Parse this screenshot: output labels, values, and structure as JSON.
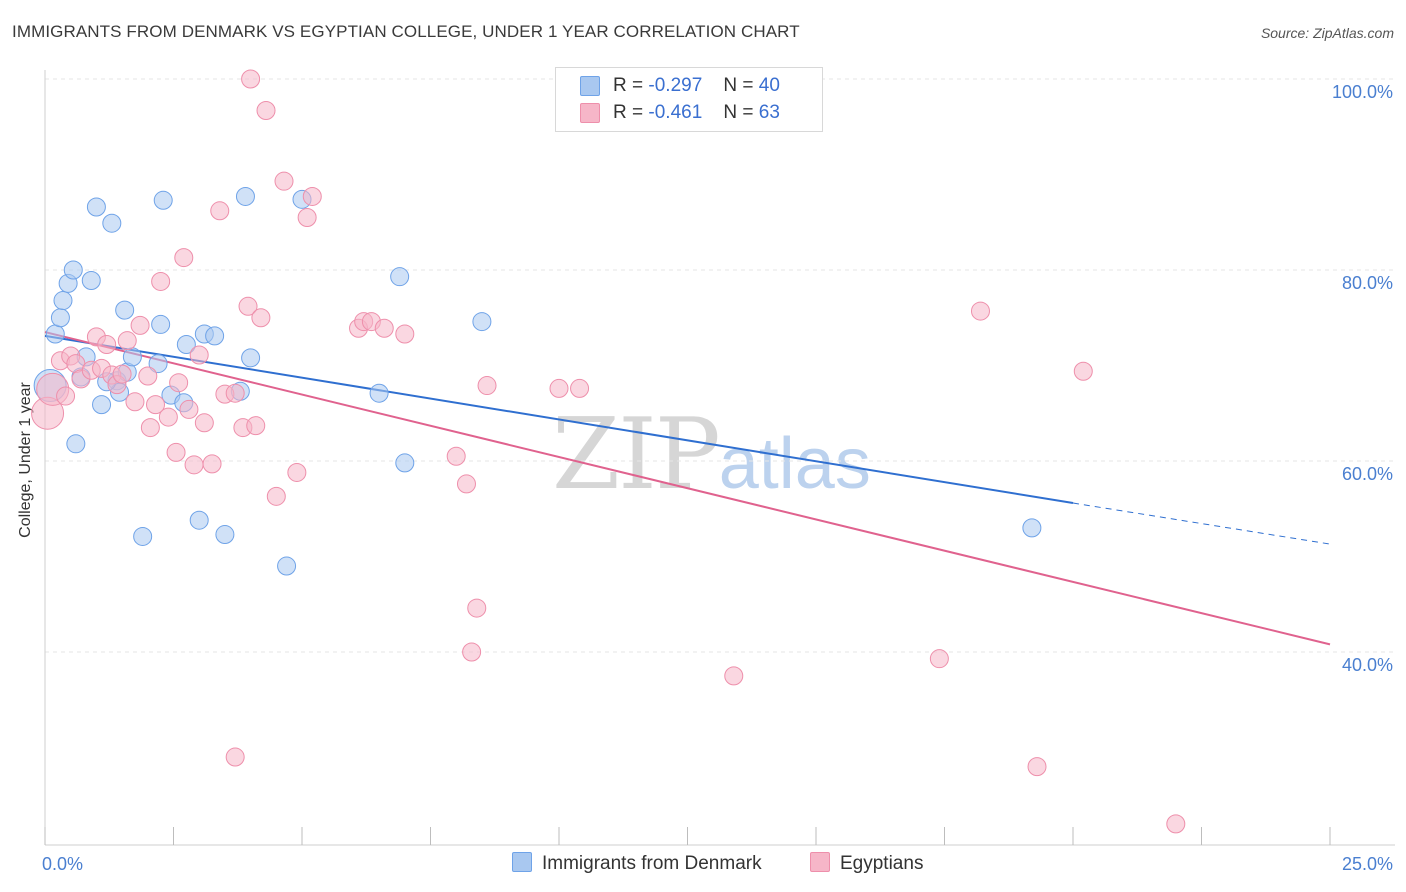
{
  "header": {
    "title": "IMMIGRANTS FROM DENMARK VS EGYPTIAN COLLEGE, UNDER 1 YEAR CORRELATION CHART",
    "source": "Source: ZipAtlas.com"
  },
  "watermark": {
    "zip": "ZIP",
    "atlas": "atlas"
  },
  "legend": {
    "rows": [
      {
        "r_label": "R =",
        "r_value": "-0.297",
        "n_label": "N =",
        "n_value": "40",
        "color": "#a9c8f0"
      },
      {
        "r_label": "R =",
        "r_value": "-0.461",
        "n_label": "N =",
        "n_value": "63",
        "color": "#f6b6c8"
      }
    ]
  },
  "bottom_legend": {
    "items": [
      {
        "label": "Immigrants from Denmark",
        "color": "#a9c8f0"
      },
      {
        "label": "Egyptians",
        "color": "#f6b6c8"
      }
    ]
  },
  "chart_data": {
    "type": "scatter",
    "title": "IMMIGRANTS FROM DENMARK VS EGYPTIAN COLLEGE, UNDER 1 YEAR CORRELATION CHART",
    "xlabel": "",
    "ylabel": "College, Under 1 year",
    "xlim": [
      0,
      25
    ],
    "ylim": [
      22,
      102
    ],
    "x_tick_labels": [
      "0.0%",
      "25.0%"
    ],
    "y_ticks": [
      40,
      60,
      80,
      100
    ],
    "y_tick_labels": [
      "40.0%",
      "60.0%",
      "80.0%",
      "100.0%"
    ],
    "grid": true,
    "legend_position": "top-center",
    "series": [
      {
        "name": "Immigrants from Denmark",
        "color": "#6fa3e8",
        "fill": "#a9c8f0",
        "line_color": "#2f6fd0",
        "trend": {
          "x0": 0.0,
          "y0": 73.1,
          "x1": 20.0,
          "y1": 55.6,
          "dash_to_x": 25.0,
          "dash_to_y": 51.3
        },
        "points": [
          [
            0.1,
            67.9
          ],
          [
            0.2,
            73.3
          ],
          [
            0.3,
            75.0
          ],
          [
            0.35,
            76.8
          ],
          [
            0.45,
            78.6
          ],
          [
            0.55,
            80.0
          ],
          [
            0.7,
            68.8
          ],
          [
            0.8,
            70.9
          ],
          [
            0.9,
            78.9
          ],
          [
            1.0,
            86.6
          ],
          [
            1.1,
            65.9
          ],
          [
            1.3,
            84.9
          ],
          [
            1.4,
            68.4
          ],
          [
            1.45,
            67.2
          ],
          [
            1.55,
            75.8
          ],
          [
            1.6,
            69.3
          ],
          [
            1.7,
            70.9
          ],
          [
            1.9,
            52.1
          ],
          [
            2.2,
            70.2
          ],
          [
            2.25,
            74.3
          ],
          [
            2.3,
            87.3
          ],
          [
            2.45,
            66.9
          ],
          [
            2.7,
            66.1
          ],
          [
            2.75,
            72.2
          ],
          [
            3.0,
            53.8
          ],
          [
            3.1,
            73.3
          ],
          [
            3.3,
            73.1
          ],
          [
            3.5,
            52.3
          ],
          [
            3.8,
            67.3
          ],
          [
            4.0,
            70.8
          ],
          [
            3.9,
            87.7
          ],
          [
            4.7,
            49.0
          ],
          [
            5.0,
            87.4
          ],
          [
            6.5,
            67.1
          ],
          [
            6.9,
            79.3
          ],
          [
            7.0,
            59.8
          ],
          [
            8.5,
            74.6
          ],
          [
            0.6,
            61.8
          ],
          [
            1.2,
            68.3
          ],
          [
            19.2,
            53.0
          ]
        ]
      },
      {
        "name": "Egyptians",
        "color": "#ee8fab",
        "fill": "#f6b6c8",
        "line_color": "#e0628e",
        "trend": {
          "x0": 0.0,
          "y0": 73.5,
          "x1": 25.0,
          "y1": 40.8
        },
        "points": [
          [
            0.05,
            65.0
          ],
          [
            0.15,
            67.5
          ],
          [
            0.3,
            70.5
          ],
          [
            0.5,
            71.0
          ],
          [
            0.6,
            70.2
          ],
          [
            0.7,
            68.6
          ],
          [
            0.9,
            69.5
          ],
          [
            1.0,
            73.0
          ],
          [
            1.1,
            69.7
          ],
          [
            1.2,
            72.2
          ],
          [
            1.3,
            69.0
          ],
          [
            1.4,
            68.0
          ],
          [
            1.5,
            69.1
          ],
          [
            1.6,
            72.6
          ],
          [
            1.75,
            66.2
          ],
          [
            1.85,
            74.2
          ],
          [
            2.0,
            68.9
          ],
          [
            2.05,
            63.5
          ],
          [
            2.15,
            65.9
          ],
          [
            2.25,
            78.8
          ],
          [
            2.4,
            64.6
          ],
          [
            2.55,
            60.9
          ],
          [
            2.6,
            68.2
          ],
          [
            2.7,
            81.3
          ],
          [
            2.8,
            65.4
          ],
          [
            2.9,
            59.6
          ],
          [
            3.0,
            71.1
          ],
          [
            3.1,
            64.0
          ],
          [
            3.25,
            59.7
          ],
          [
            3.4,
            86.2
          ],
          [
            3.5,
            67.0
          ],
          [
            3.7,
            67.1
          ],
          [
            3.85,
            63.5
          ],
          [
            4.1,
            63.7
          ],
          [
            3.95,
            76.2
          ],
          [
            4.2,
            75.0
          ],
          [
            4.3,
            96.7
          ],
          [
            4.5,
            56.3
          ],
          [
            4.65,
            89.3
          ],
          [
            4.9,
            58.8
          ],
          [
            5.1,
            85.5
          ],
          [
            5.2,
            87.7
          ],
          [
            6.1,
            73.9
          ],
          [
            6.2,
            74.6
          ],
          [
            6.35,
            74.6
          ],
          [
            6.6,
            73.9
          ],
          [
            7.0,
            73.3
          ],
          [
            8.0,
            60.5
          ],
          [
            8.2,
            57.6
          ],
          [
            8.4,
            44.6
          ],
          [
            8.3,
            40.0
          ],
          [
            8.6,
            67.9
          ],
          [
            10.0,
            67.6
          ],
          [
            10.4,
            67.6
          ],
          [
            4.0,
            100.0
          ],
          [
            3.7,
            29.0
          ],
          [
            13.4,
            37.5
          ],
          [
            17.4,
            39.3
          ],
          [
            18.2,
            75.7
          ],
          [
            19.3,
            28.0
          ],
          [
            20.2,
            69.4
          ],
          [
            22.0,
            22.0
          ],
          [
            0.4,
            66.8
          ]
        ]
      }
    ]
  }
}
